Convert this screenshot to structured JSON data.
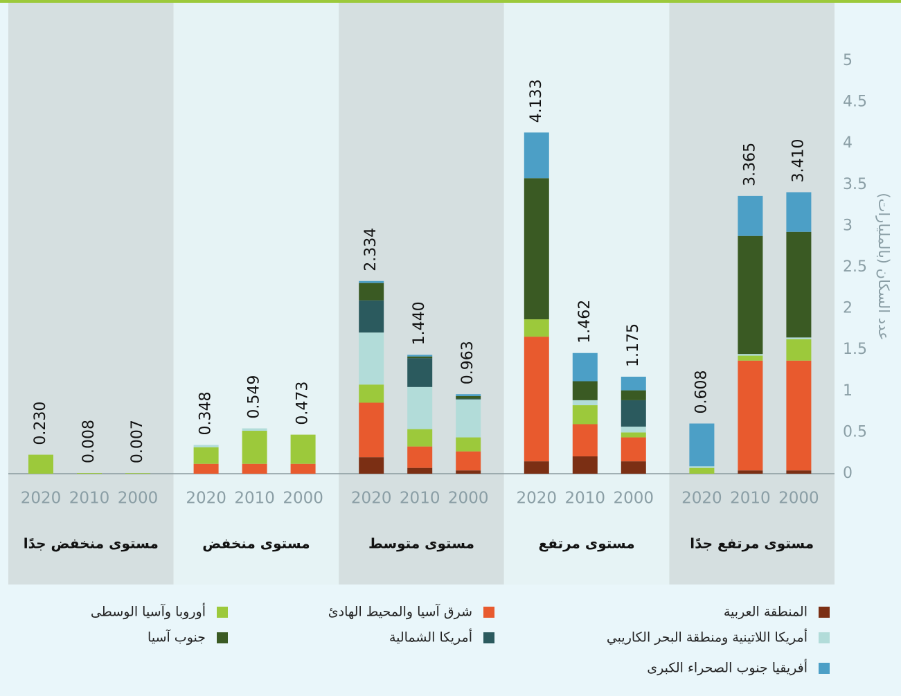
{
  "chart_data": {
    "type": "bar",
    "stacked": true,
    "y_label": "عدد السكان (بالمليارات)",
    "groups": [
      "مستوى منخفض جدًا",
      "مستوى منخفض",
      "مستوى متوسط",
      "مستوى مرتفع",
      "مستوى مرتفع جدًا"
    ],
    "categories": [
      "2020",
      "2010",
      "2000",
      "2020",
      "2010",
      "2000",
      "2020",
      "2010",
      "2000",
      "2020",
      "2010",
      "2000",
      "2020",
      "2010",
      "2000"
    ],
    "series": [
      {
        "name": "المنطقة العربية",
        "color": "#7b2f14",
        "values": [
          0,
          0,
          0,
          0,
          0,
          0,
          0.2,
          0.07,
          0.04,
          0.15,
          0.21,
          0.15,
          0,
          0.04,
          0.04
        ]
      },
      {
        "name": "شرق آسيا والمحيط الهادئ",
        "color": "#e85a2e",
        "values": [
          0,
          0,
          0,
          0.12,
          0.12,
          0.12,
          0.66,
          0.26,
          0.23,
          1.51,
          0.39,
          0.29,
          0,
          1.33,
          1.33
        ]
      },
      {
        "name": "أوروبا وآسيا الوسطى",
        "color": "#9cc93b",
        "values": [
          0.23,
          0.008,
          0.007,
          0.2,
          0.4,
          0.353,
          0.22,
          0.21,
          0.17,
          0.21,
          0.23,
          0.06,
          0.07,
          0.06,
          0.26
        ]
      },
      {
        "name": "أمريكا اللاتينية ومنطقة البحر الكاريبي",
        "color": "#b2dcd9",
        "values": [
          0,
          0,
          0,
          0.028,
          0.029,
          0,
          0.63,
          0.51,
          0.46,
          0,
          0.06,
          0.07,
          0.02,
          0.02,
          0.02
        ]
      },
      {
        "name": "أمريكا الشمالية",
        "color": "#2b5a5e",
        "values": [
          0,
          0,
          0,
          0,
          0,
          0,
          0.39,
          0.35,
          0.01,
          0,
          0,
          0.32,
          0,
          0,
          0
        ]
      },
      {
        "name": "جنوب آسيا",
        "color": "#3a5a23",
        "values": [
          0,
          0,
          0,
          0,
          0,
          0,
          0.21,
          0.02,
          0.03,
          1.71,
          0.23,
          0.12,
          0,
          1.43,
          1.28
        ]
      },
      {
        "name": "أفريقيا جنوب الصحراء الكبرى",
        "color": "#4c9fc6",
        "values": [
          0,
          0,
          0,
          0,
          0,
          0,
          0.024,
          0.02,
          0.023,
          0.553,
          0.342,
          0.165,
          0.518,
          0.485,
          0.48
        ]
      }
    ],
    "totals": {
      "values": [
        0.23,
        0.008,
        0.007,
        0.348,
        0.549,
        0.473,
        2.334,
        1.44,
        0.963,
        4.133,
        1.462,
        1.175,
        0.608,
        3.365,
        3.41
      ],
      "value_labels": [
        "0.230",
        "0.008",
        "0.007",
        "0.348",
        "0.549",
        "0.473",
        "2.334",
        "1.440",
        "0.963",
        "4.133",
        "1.462",
        "1.175",
        "0.608",
        "3.365",
        "3.410"
      ]
    },
    "ylim": [
      0,
      5
    ],
    "yticks": [
      0,
      0.5,
      1,
      1.5,
      2,
      2.5,
      3,
      3.5,
      4,
      4.5,
      5
    ]
  }
}
